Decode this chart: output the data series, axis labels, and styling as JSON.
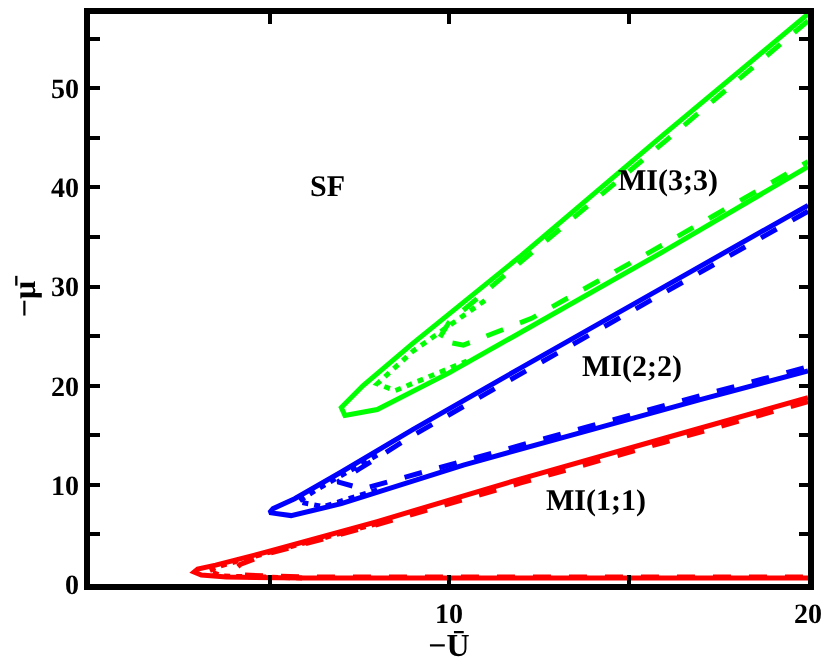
{
  "chart_data": {
    "type": "line",
    "xlabel": "−Ū",
    "ylabel": "−μ̄",
    "xlim": [
      0,
      20
    ],
    "ylim": [
      0,
      57.5
    ],
    "xticks": [
      {
        "value": 5,
        "label": null
      },
      10,
      {
        "value": 15,
        "label": null
      },
      20
    ],
    "yticks": [
      0,
      {
        "value": 5,
        "label": null
      },
      10,
      {
        "value": 15,
        "label": null
      },
      20,
      {
        "value": 25,
        "label": null
      },
      30,
      {
        "value": 35,
        "label": null
      },
      40,
      {
        "value": 45,
        "label": null
      },
      50,
      {
        "value": 55,
        "label": null
      }
    ],
    "marker": "none",
    "annotations": [
      "SF",
      "MI(3;3)",
      "MI(2;2)",
      "MI(1;1)"
    ],
    "series": [
      {
        "color": "#ff0000",
        "line_style": "solid",
        "x": [
          20,
          16,
          12,
          8,
          5,
          3.5,
          3.0,
          2.9,
          3.1,
          3.8,
          6,
          12,
          20
        ],
        "values": [
          18.8,
          14.7,
          10.6,
          6.3,
          3.3,
          1.9,
          1.5,
          1.2,
          0.9,
          0.7,
          0.6,
          0.6,
          0.6
        ]
      },
      {
        "color": "#ff0000",
        "line_style": "dashed",
        "x": [
          20,
          16,
          12,
          8,
          5,
          4.2,
          4.0,
          4.3,
          6,
          12,
          20
        ],
        "values": [
          18.4,
          14.3,
          10.2,
          6.0,
          3.1,
          2.0,
          1.4,
          0.9,
          0.7,
          0.7,
          0.7
        ]
      },
      {
        "color": "#ff0000",
        "line_style": "dotted",
        "x": [
          8,
          5,
          3.6,
          3.3,
          3.7,
          6
        ],
        "values": [
          6.1,
          3.2,
          1.8,
          1.3,
          0.8,
          0.6
        ]
      },
      {
        "color": "#0000ff",
        "line_style": "solid",
        "x": [
          20,
          16,
          12,
          9,
          7,
          5.7,
          5.1,
          5.0,
          5.6,
          7,
          10.4,
          14,
          17,
          20
        ],
        "values": [
          38.2,
          30.0,
          21.8,
          15.6,
          11.3,
          8.6,
          7.6,
          7.2,
          6.9,
          8.1,
          12.0,
          15.6,
          18.6,
          21.5
        ]
      },
      {
        "color": "#0000ff",
        "line_style": "dashed",
        "x": [
          20,
          16,
          12,
          9,
          7.5,
          6.9,
          7.6,
          10.4,
          14,
          17,
          20
        ],
        "values": [
          37.6,
          29.4,
          21.2,
          15.0,
          11.6,
          10.3,
          9.6,
          12.4,
          16.0,
          19.0,
          21.9
        ]
      },
      {
        "color": "#0000ff",
        "line_style": "dotted",
        "x": [
          8,
          6.3,
          5.8,
          6.5,
          8
        ],
        "values": [
          13,
          9.5,
          8.3,
          7.8,
          9.5
        ]
      },
      {
        "color": "#00ff00",
        "line_style": "solid",
        "x": [
          20,
          16,
          12,
          9,
          7.6,
          7.0,
          7.1,
          8,
          10,
          12.3,
          16,
          20
        ],
        "values": [
          57.5,
          45.4,
          33.1,
          24.3,
          20.0,
          17.8,
          17.0,
          17.6,
          21.3,
          26.0,
          33.6,
          42.1
        ]
      },
      {
        "color": "#00ff00",
        "line_style": "dashed",
        "x": [
          20,
          16,
          12,
          10,
          9.7,
          10.4,
          12.3,
          16,
          20
        ],
        "values": [
          56.8,
          44.6,
          32.5,
          26.4,
          24.6,
          24.1,
          26.8,
          34.3,
          42.6
        ]
      },
      {
        "color": "#00ff00",
        "line_style": "dotted",
        "x": [
          11,
          9,
          8,
          8.5,
          10.5
        ],
        "values": [
          28.6,
          23.5,
          20.2,
          19.5,
          22.5
        ]
      }
    ]
  }
}
